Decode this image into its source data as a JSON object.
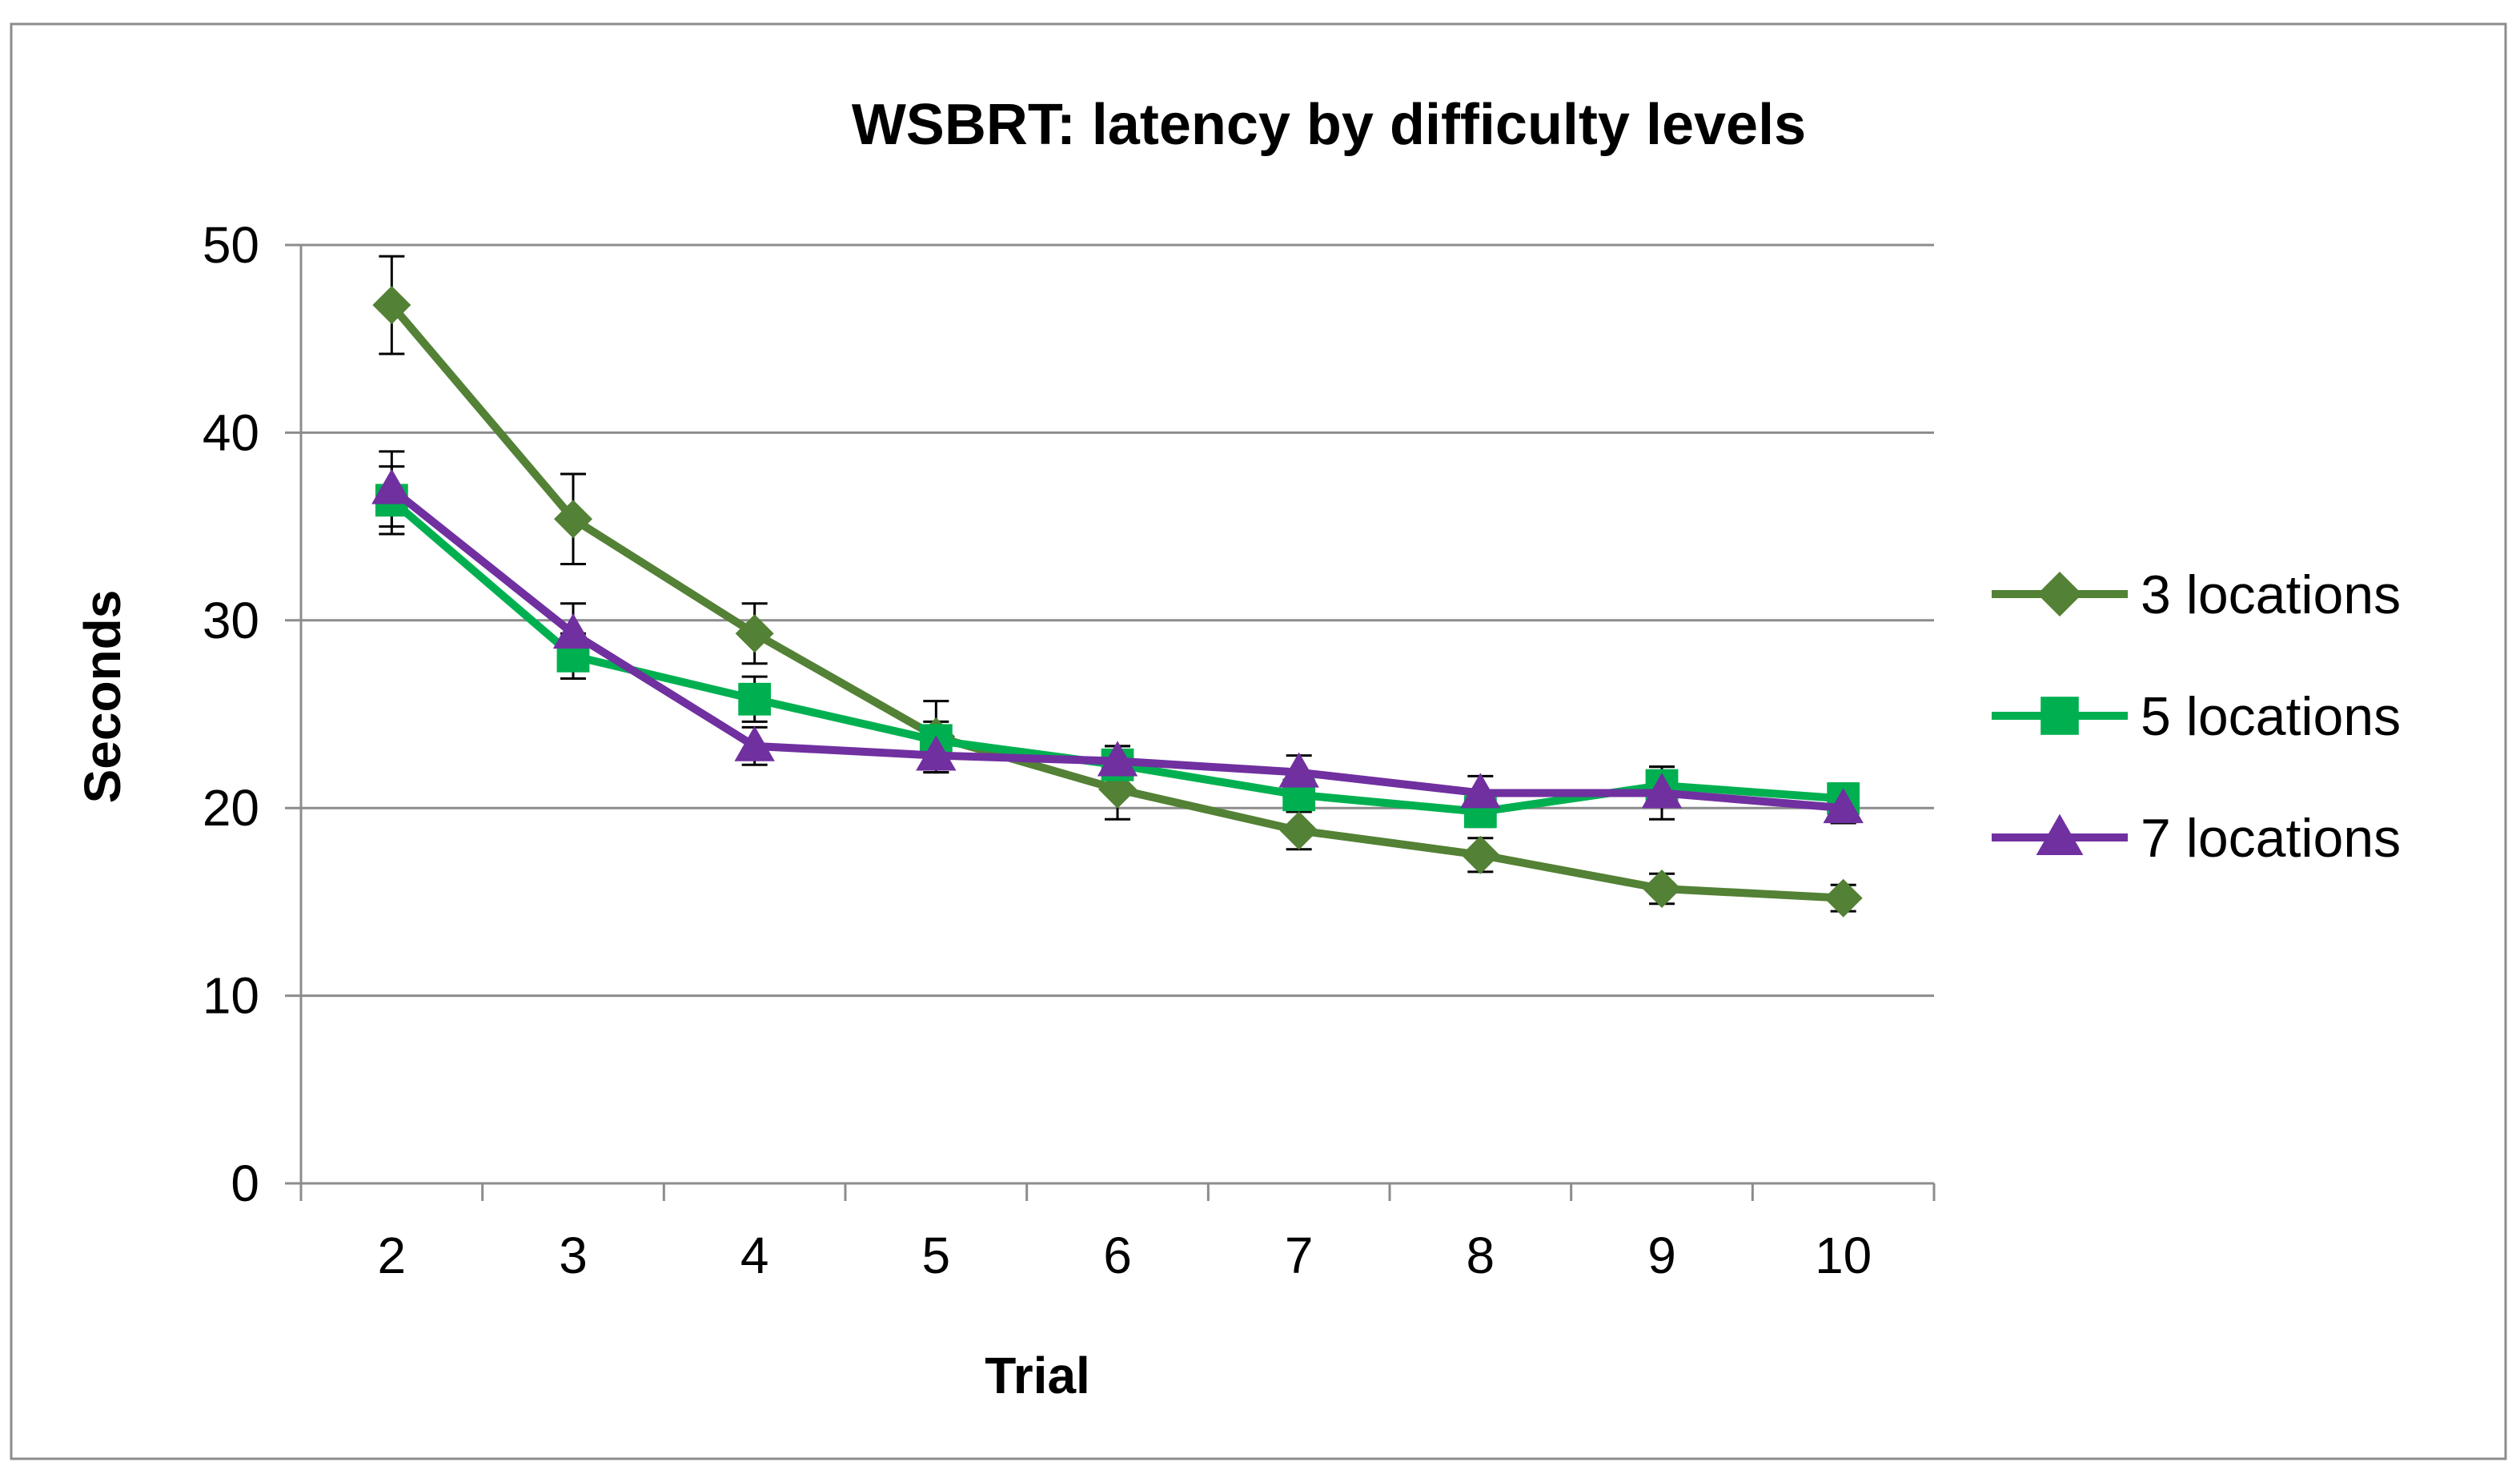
{
  "chart_data": {
    "type": "line",
    "title": "WSBRT: latency by difficulty levels",
    "xlabel": "Trial",
    "ylabel": "Seconds",
    "categories": [
      "2",
      "3",
      "4",
      "5",
      "6",
      "7",
      "8",
      "9",
      "10"
    ],
    "ylim": [
      0,
      50
    ],
    "yticks": [
      0,
      10,
      20,
      30,
      40,
      50
    ],
    "grid": true,
    "legend_position": "right",
    "series": [
      {
        "name": "3 locations",
        "color": "#538135",
        "marker": "diamond",
        "values": [
          46.8,
          35.4,
          29.3,
          23.8,
          21.0,
          18.8,
          17.5,
          15.7,
          15.2
        ],
        "errors": [
          2.6,
          2.4,
          1.6,
          1.9,
          1.6,
          1.0,
          0.9,
          0.8,
          0.7
        ]
      },
      {
        "name": "5 locations",
        "color": "#00b050",
        "marker": "square",
        "values": [
          36.4,
          28.1,
          25.8,
          23.6,
          22.3,
          20.7,
          19.8,
          21.2,
          20.5
        ],
        "errors": [
          1.8,
          1.2,
          1.2,
          1.0,
          1.0,
          0.9,
          0.8,
          1.0,
          0.8
        ]
      },
      {
        "name": "7 locations",
        "color": "#7030a0",
        "marker": "triangle",
        "values": [
          37.0,
          29.3,
          23.3,
          22.8,
          22.5,
          21.9,
          20.8,
          20.8,
          20.0
        ],
        "errors": [
          2.0,
          1.6,
          1.0,
          0.9,
          0.8,
          0.9,
          0.9,
          1.4,
          0.8
        ]
      }
    ]
  }
}
